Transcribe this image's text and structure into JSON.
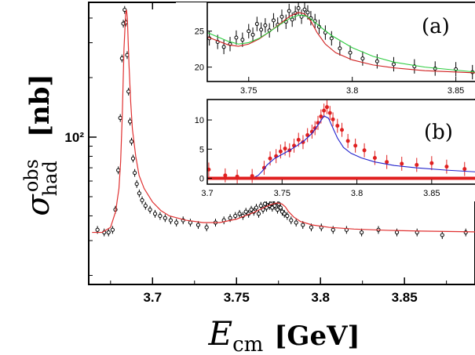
{
  "chart_data": [
    {
      "type": "scatter",
      "title": "",
      "xlabel": "E",
      "xlabel_sub": "cm",
      "xunit": "[GeV]",
      "ylabel": "σ",
      "ylabel_sup": "obs",
      "ylabel_sub": "had",
      "yunit": "[nb]",
      "ylog": true,
      "xlim": [
        3.662,
        3.892
      ],
      "ylim": [
        18,
        480
      ],
      "x_ticks": [
        3.7,
        3.75,
        3.8,
        3.85
      ],
      "x_tick_labels": [
        "3.7",
        "3.75",
        "3.8",
        "3.85"
      ],
      "y_tick_values": [
        100
      ],
      "y_tick_labels": [
        "10²"
      ],
      "series": [
        {
          "kind": "points",
          "color": "#000000",
          "x": [
            3.6672,
            3.6712,
            3.6738,
            3.6762,
            3.6779,
            3.6796,
            3.6808,
            3.6818,
            3.6826,
            3.6834,
            3.6841,
            3.6849,
            3.6857,
            3.6866,
            3.6875,
            3.6884,
            3.6894,
            3.6906,
            3.6921,
            3.6938,
            3.6958,
            3.6985,
            3.7015,
            3.7045,
            3.7075,
            3.7108,
            3.7142,
            3.7182,
            3.7225,
            3.7272,
            3.7322,
            3.7375,
            3.7425,
            3.7462,
            3.7493,
            3.7518,
            3.7538,
            3.7556,
            3.7572,
            3.7588,
            3.7603,
            3.7618,
            3.7632,
            3.7645,
            3.7658,
            3.7669,
            3.7679,
            3.7688,
            3.7697,
            3.7705,
            3.7713,
            3.7721,
            3.7728,
            3.7736,
            3.7744,
            3.7752,
            3.7762,
            3.7772,
            3.7785,
            3.7802,
            3.7825,
            3.7855,
            3.7895,
            3.7945,
            3.8005,
            3.8075,
            3.8155,
            3.8245,
            3.8345,
            3.8455,
            3.8575,
            3.8725,
            3.8865
          ],
          "y": [
            34,
            33,
            33,
            34,
            43,
            68,
            125,
            250,
            375,
            440,
            380,
            260,
            170,
            120,
            95,
            78,
            66,
            58,
            52,
            48,
            45,
            43,
            41,
            40,
            39,
            38,
            37,
            38,
            37,
            36,
            35,
            37,
            38,
            39,
            40,
            41,
            40,
            42,
            41,
            43,
            42,
            44,
            41,
            45,
            43,
            46,
            44,
            47,
            45,
            46,
            44,
            48,
            45,
            47,
            43,
            46,
            44,
            42,
            41,
            40,
            38,
            37,
            36,
            35,
            35,
            34,
            34,
            33,
            34,
            33,
            33,
            32,
            33
          ]
        },
        {
          "kind": "line",
          "color": "#e03030",
          "x": [
            3.664,
            3.67,
            3.675,
            3.678,
            3.68,
            3.681,
            3.682,
            3.683,
            3.684,
            3.6845,
            3.685,
            3.686,
            3.687,
            3.688,
            3.69,
            3.692,
            3.695,
            3.7,
            3.705,
            3.71,
            3.72,
            3.73,
            3.74,
            3.75,
            3.755,
            3.76,
            3.765,
            3.77,
            3.774,
            3.777,
            3.779,
            3.781,
            3.784,
            3.788,
            3.795,
            3.805,
            3.82,
            3.84,
            3.86,
            3.892
          ],
          "y": [
            33,
            33,
            35,
            42,
            55,
            75,
            130,
            280,
            420,
            440,
            400,
            230,
            150,
            110,
            80,
            64,
            55,
            47,
            42.5,
            40,
            38,
            37,
            37,
            38.5,
            40,
            41.5,
            43.5,
            45.5,
            46.5,
            46,
            44.5,
            42,
            39.5,
            37.5,
            36,
            35,
            34.3,
            33.8,
            33.5,
            33.2
          ]
        }
      ]
    },
    {
      "type": "scatter",
      "label": "(a)",
      "xlim": [
        3.73,
        3.86
      ],
      "ylim": [
        18,
        29
      ],
      "x_ticks": [
        3.75,
        3.8,
        3.85
      ],
      "x_tick_labels": [
        "3.75",
        "3.8",
        "3.85"
      ],
      "y_ticks": [
        20,
        25
      ],
      "y_tick_labels": [
        "20",
        "25"
      ],
      "series": [
        {
          "kind": "points",
          "color": "#000000",
          "x": [
            3.731,
            3.735,
            3.738,
            3.741,
            3.744,
            3.747,
            3.75,
            3.752,
            3.754,
            3.756,
            3.758,
            3.76,
            3.762,
            3.764,
            3.766,
            3.768,
            3.7695,
            3.771,
            3.7725,
            3.774,
            3.7755,
            3.777,
            3.7785,
            3.78,
            3.782,
            3.784,
            3.787,
            3.79,
            3.794,
            3.799,
            3.805,
            3.812,
            3.82,
            3.83,
            3.84,
            3.85,
            3.858
          ],
          "y": [
            24,
            23.5,
            22.8,
            23.2,
            24.1,
            23.8,
            25,
            24.5,
            26,
            25.2,
            25.8,
            25.1,
            26.5,
            25.9,
            27,
            26.3,
            27.8,
            26.6,
            27.5,
            28.2,
            27,
            28,
            27.6,
            26.8,
            26.4,
            25.6,
            24.8,
            24,
            22.6,
            22,
            21.2,
            20.8,
            20.4,
            20.1,
            19.8,
            19.7,
            19.3
          ]
        },
        {
          "kind": "line",
          "color": "#d02020",
          "x": [
            3.73,
            3.74,
            3.745,
            3.75,
            3.755,
            3.76,
            3.765,
            3.77,
            3.774,
            3.777,
            3.78,
            3.783,
            3.787,
            3.792,
            3.8,
            3.81,
            3.82,
            3.835,
            3.86
          ],
          "y": [
            24.2,
            23.1,
            22.9,
            23.2,
            23.9,
            24.9,
            26,
            27.1,
            27.6,
            27.4,
            26.4,
            24.8,
            23.2,
            22,
            21,
            20.3,
            19.9,
            19.5,
            19.2
          ]
        },
        {
          "kind": "line",
          "color": "#2ecc40",
          "x": [
            3.73,
            3.74,
            3.745,
            3.75,
            3.755,
            3.76,
            3.765,
            3.77,
            3.774,
            3.777,
            3.78,
            3.785,
            3.79,
            3.8,
            3.81,
            3.82,
            3.835,
            3.86
          ],
          "y": [
            24.8,
            23.6,
            23.2,
            23.4,
            24,
            24.9,
            25.9,
            26.8,
            27.2,
            27.2,
            26.7,
            25.5,
            24.4,
            22.7,
            21.5,
            20.7,
            20,
            19.3
          ]
        }
      ]
    },
    {
      "type": "scatter",
      "label": "(b)",
      "xlim": [
        3.7,
        3.88
      ],
      "ylim": [
        -1,
        13.5
      ],
      "x_ticks": [
        3.7,
        3.75,
        3.8,
        3.85
      ],
      "x_tick_labels": [
        "3.7",
        "3.75",
        "3.8",
        "3.85"
      ],
      "y_ticks": [
        0,
        5,
        10
      ],
      "y_tick_labels": [
        "0",
        "5",
        "10"
      ],
      "series": [
        {
          "kind": "points",
          "color": "#e02020",
          "x": [
            3.701,
            3.712,
            3.72,
            3.73,
            3.738,
            3.742,
            3.746,
            3.749,
            3.752,
            3.755,
            3.758,
            3.761,
            3.764,
            3.767,
            3.77,
            3.772,
            3.774,
            3.776,
            3.778,
            3.78,
            3.782,
            3.784,
            3.787,
            3.79,
            3.794,
            3.799,
            3.805,
            3.812,
            3.82,
            3.83,
            3.84,
            3.85,
            3.86,
            3.872
          ],
          "y": [
            1.5,
            0.5,
            0.3,
            0.4,
            1.8,
            3.4,
            3.8,
            4.6,
            5.1,
            4.8,
            5.6,
            6.6,
            6.2,
            7.4,
            8,
            8.6,
            9.5,
            10.6,
            11.6,
            12.2,
            11.2,
            10.1,
            9,
            8.3,
            6.4,
            5.6,
            4.8,
            3.5,
            2.8,
            2.5,
            2.3,
            2.6,
            2,
            1.6
          ]
        },
        {
          "kind": "line",
          "color": "#2222cc",
          "x": [
            3.73,
            3.734,
            3.737,
            3.74,
            3.745,
            3.75,
            3.755,
            3.76,
            3.765,
            3.77,
            3.775,
            3.778,
            3.781,
            3.784,
            3.787,
            3.791,
            3.796,
            3.803,
            3.812,
            3.825,
            3.84,
            3.86,
            3.88
          ],
          "y": [
            0,
            0.5,
            1.3,
            2.3,
            3.4,
            4.1,
            4.8,
            5.6,
            6.5,
            7.7,
            9.5,
            10.7,
            10.3,
            8.6,
            6.9,
            5.3,
            4.3,
            3.5,
            2.8,
            2.2,
            1.8,
            1.4,
            1.1
          ]
        },
        {
          "kind": "line",
          "color": "#e02020",
          "x": [
            3.7,
            3.88
          ],
          "y": [
            0,
            0
          ]
        }
      ]
    }
  ]
}
